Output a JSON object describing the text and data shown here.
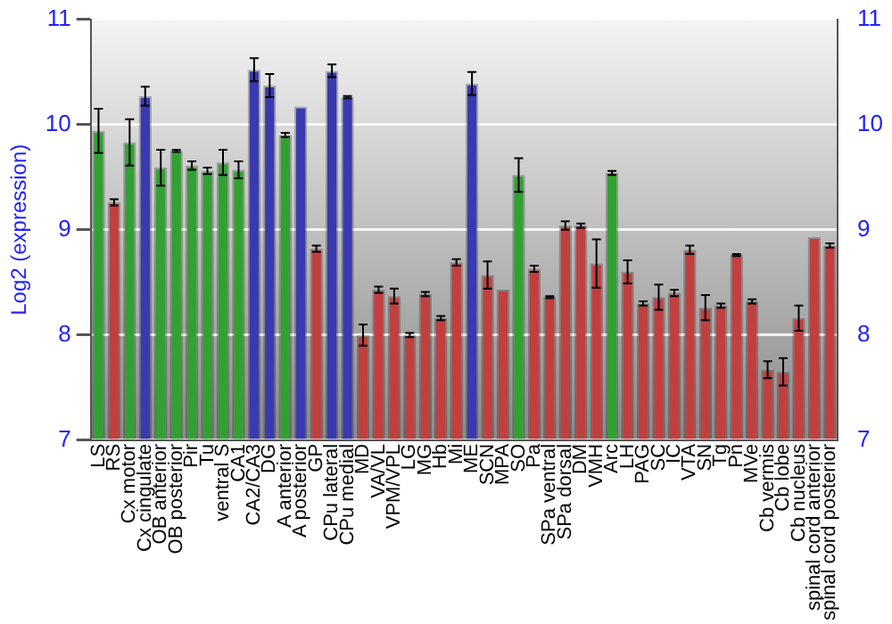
{
  "chart_data": {
    "type": "bar",
    "ylabel": "Log2 (expression)",
    "categories": [
      "LS",
      "RS",
      "Cx motor",
      "Cx cingulate",
      "OB anterior",
      "OB posterior",
      "Pir",
      "Tu",
      "ventral S",
      "CA1",
      "CA2/CA3",
      "DG",
      "A anterior",
      "A posterior",
      "GP",
      "CPu lateral",
      "CPu medial",
      "MD",
      "VA/VL",
      "VPM/VPL",
      "LG",
      "MG",
      "Hb",
      "Mi",
      "ME",
      "SCN",
      "MPA",
      "SO",
      "Pa",
      "SPa ventral",
      "SPa dorsal",
      "DM",
      "VMH",
      "Arc",
      "LH",
      "PAG",
      "SC",
      "IC",
      "VTA",
      "SN",
      "Tg",
      "Pn",
      "MVe",
      "Cb vermis",
      "Cb lobe",
      "Cb nucleus",
      "spinal cord anterior",
      "spinal cord posterior"
    ],
    "values": [
      9.94,
      9.26,
      9.83,
      10.27,
      9.59,
      9.75,
      9.61,
      9.56,
      9.64,
      9.57,
      10.52,
      10.37,
      9.9,
      10.17,
      8.82,
      10.51,
      10.26,
      8.0,
      8.43,
      8.37,
      8.0,
      8.39,
      8.16,
      8.69,
      10.39,
      8.57,
      8.43,
      9.52,
      8.63,
      8.36,
      9.04,
      9.04,
      8.68,
      9.54,
      8.6,
      8.3,
      8.36,
      8.4,
      8.81,
      8.26,
      8.28,
      8.76,
      8.32,
      7.67,
      7.65,
      8.16,
      8.93,
      8.85
    ],
    "errors": [
      0.21,
      0.03,
      0.22,
      0.09,
      0.17,
      0.01,
      0.04,
      0.03,
      0.12,
      0.08,
      0.11,
      0.11,
      0.02,
      null,
      0.03,
      0.06,
      0.01,
      0.1,
      0.03,
      0.07,
      0.02,
      0.02,
      0.02,
      0.03,
      0.11,
      0.13,
      null,
      0.16,
      0.03,
      0.01,
      0.04,
      0.02,
      0.23,
      0.02,
      0.11,
      0.02,
      0.12,
      0.03,
      0.04,
      0.12,
      0.02,
      0.01,
      0.02,
      0.08,
      0.13,
      0.12,
      null,
      0.02
    ],
    "colors": [
      "#33a033",
      "#c04040",
      "#33a033",
      "#3a3ab0",
      "#33a033",
      "#33a033",
      "#33a033",
      "#33a033",
      "#33a033",
      "#33a033",
      "#3a3ab0",
      "#3a3ab0",
      "#33a033",
      "#3a3ab0",
      "#c04040",
      "#3a3ab0",
      "#3a3ab0",
      "#c04040",
      "#c04040",
      "#c04040",
      "#c04040",
      "#c04040",
      "#c04040",
      "#c04040",
      "#3a3ab0",
      "#c04040",
      "#c04040",
      "#33a033",
      "#c04040",
      "#c04040",
      "#c04040",
      "#c04040",
      "#c04040",
      "#33a033",
      "#c04040",
      "#c04040",
      "#c04040",
      "#c04040",
      "#c04040",
      "#c04040",
      "#c04040",
      "#c04040",
      "#c04040",
      "#c04040",
      "#c04040",
      "#c04040",
      "#c04040",
      "#c04040"
    ],
    "ylim": [
      7,
      11
    ],
    "yticks": [
      7,
      8,
      9,
      10,
      11
    ],
    "y2lim": [
      7,
      11
    ],
    "y2ticks": [
      7,
      8,
      9,
      10,
      11
    ],
    "grid": true,
    "legend": false
  }
}
